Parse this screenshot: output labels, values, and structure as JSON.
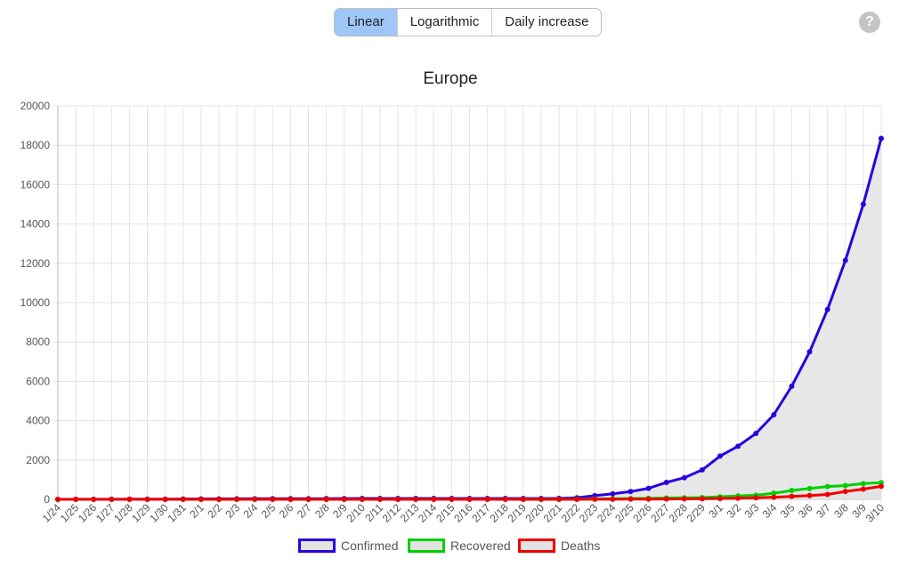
{
  "toolbar": {
    "buttons": [
      {
        "label": "Linear",
        "active": true
      },
      {
        "label": "Logarithmic",
        "active": false
      },
      {
        "label": "Daily increase",
        "active": false
      }
    ],
    "help_label": "?"
  },
  "chart_data": {
    "type": "line",
    "title": "Europe",
    "xlabel": "",
    "ylabel": "",
    "ylim": [
      0,
      20000
    ],
    "yticks": [
      0,
      2000,
      4000,
      6000,
      8000,
      10000,
      12000,
      14000,
      16000,
      18000,
      20000
    ],
    "grid": true,
    "legend_position": "bottom",
    "categories": [
      "1/24",
      "1/25",
      "1/26",
      "1/27",
      "1/28",
      "1/29",
      "1/30",
      "1/31",
      "2/1",
      "2/2",
      "2/3",
      "2/4",
      "2/5",
      "2/6",
      "2/7",
      "2/8",
      "2/9",
      "2/10",
      "2/11",
      "2/12",
      "2/13",
      "2/14",
      "2/15",
      "2/16",
      "2/17",
      "2/18",
      "2/19",
      "2/20",
      "2/21",
      "2/22",
      "2/23",
      "2/24",
      "2/25",
      "2/26",
      "2/27",
      "2/28",
      "2/29",
      "3/1",
      "3/2",
      "3/3",
      "3/4",
      "3/5",
      "3/6",
      "3/7",
      "3/8",
      "3/9",
      "3/10"
    ],
    "series": [
      {
        "name": "Confirmed",
        "color": "#2a00e0",
        "fill": "#e3e3e3",
        "values": [
          2,
          3,
          3,
          4,
          10,
          10,
          14,
          17,
          22,
          25,
          28,
          30,
          32,
          33,
          34,
          38,
          41,
          46,
          46,
          46,
          47,
          47,
          47,
          47,
          47,
          47,
          47,
          47,
          50,
          82,
          185,
          280,
          395,
          560,
          860,
          1100,
          1500,
          2200,
          2700,
          3350,
          4300,
          5750,
          7500,
          9650,
          12150,
          15000,
          18350
        ]
      },
      {
        "name": "Recovered",
        "color": "#00d000",
        "fill": "#e3e3e3",
        "values": [
          0,
          0,
          0,
          0,
          0,
          0,
          0,
          0,
          0,
          0,
          0,
          0,
          0,
          0,
          0,
          0,
          0,
          2,
          4,
          4,
          5,
          5,
          6,
          6,
          6,
          6,
          7,
          8,
          10,
          12,
          20,
          30,
          40,
          50,
          70,
          80,
          90,
          130,
          175,
          210,
          310,
          450,
          550,
          650,
          700,
          800,
          850
        ]
      },
      {
        "name": "Deaths",
        "color": "#ee0000",
        "fill": "#e3e3e3",
        "values": [
          0,
          0,
          0,
          0,
          0,
          0,
          0,
          0,
          0,
          0,
          0,
          0,
          0,
          0,
          0,
          1,
          1,
          1,
          1,
          1,
          1,
          1,
          1,
          1,
          1,
          1,
          1,
          1,
          1,
          2,
          3,
          6,
          10,
          13,
          18,
          22,
          30,
          40,
          55,
          80,
          110,
          150,
          190,
          250,
          400,
          520,
          660
        ]
      }
    ]
  }
}
